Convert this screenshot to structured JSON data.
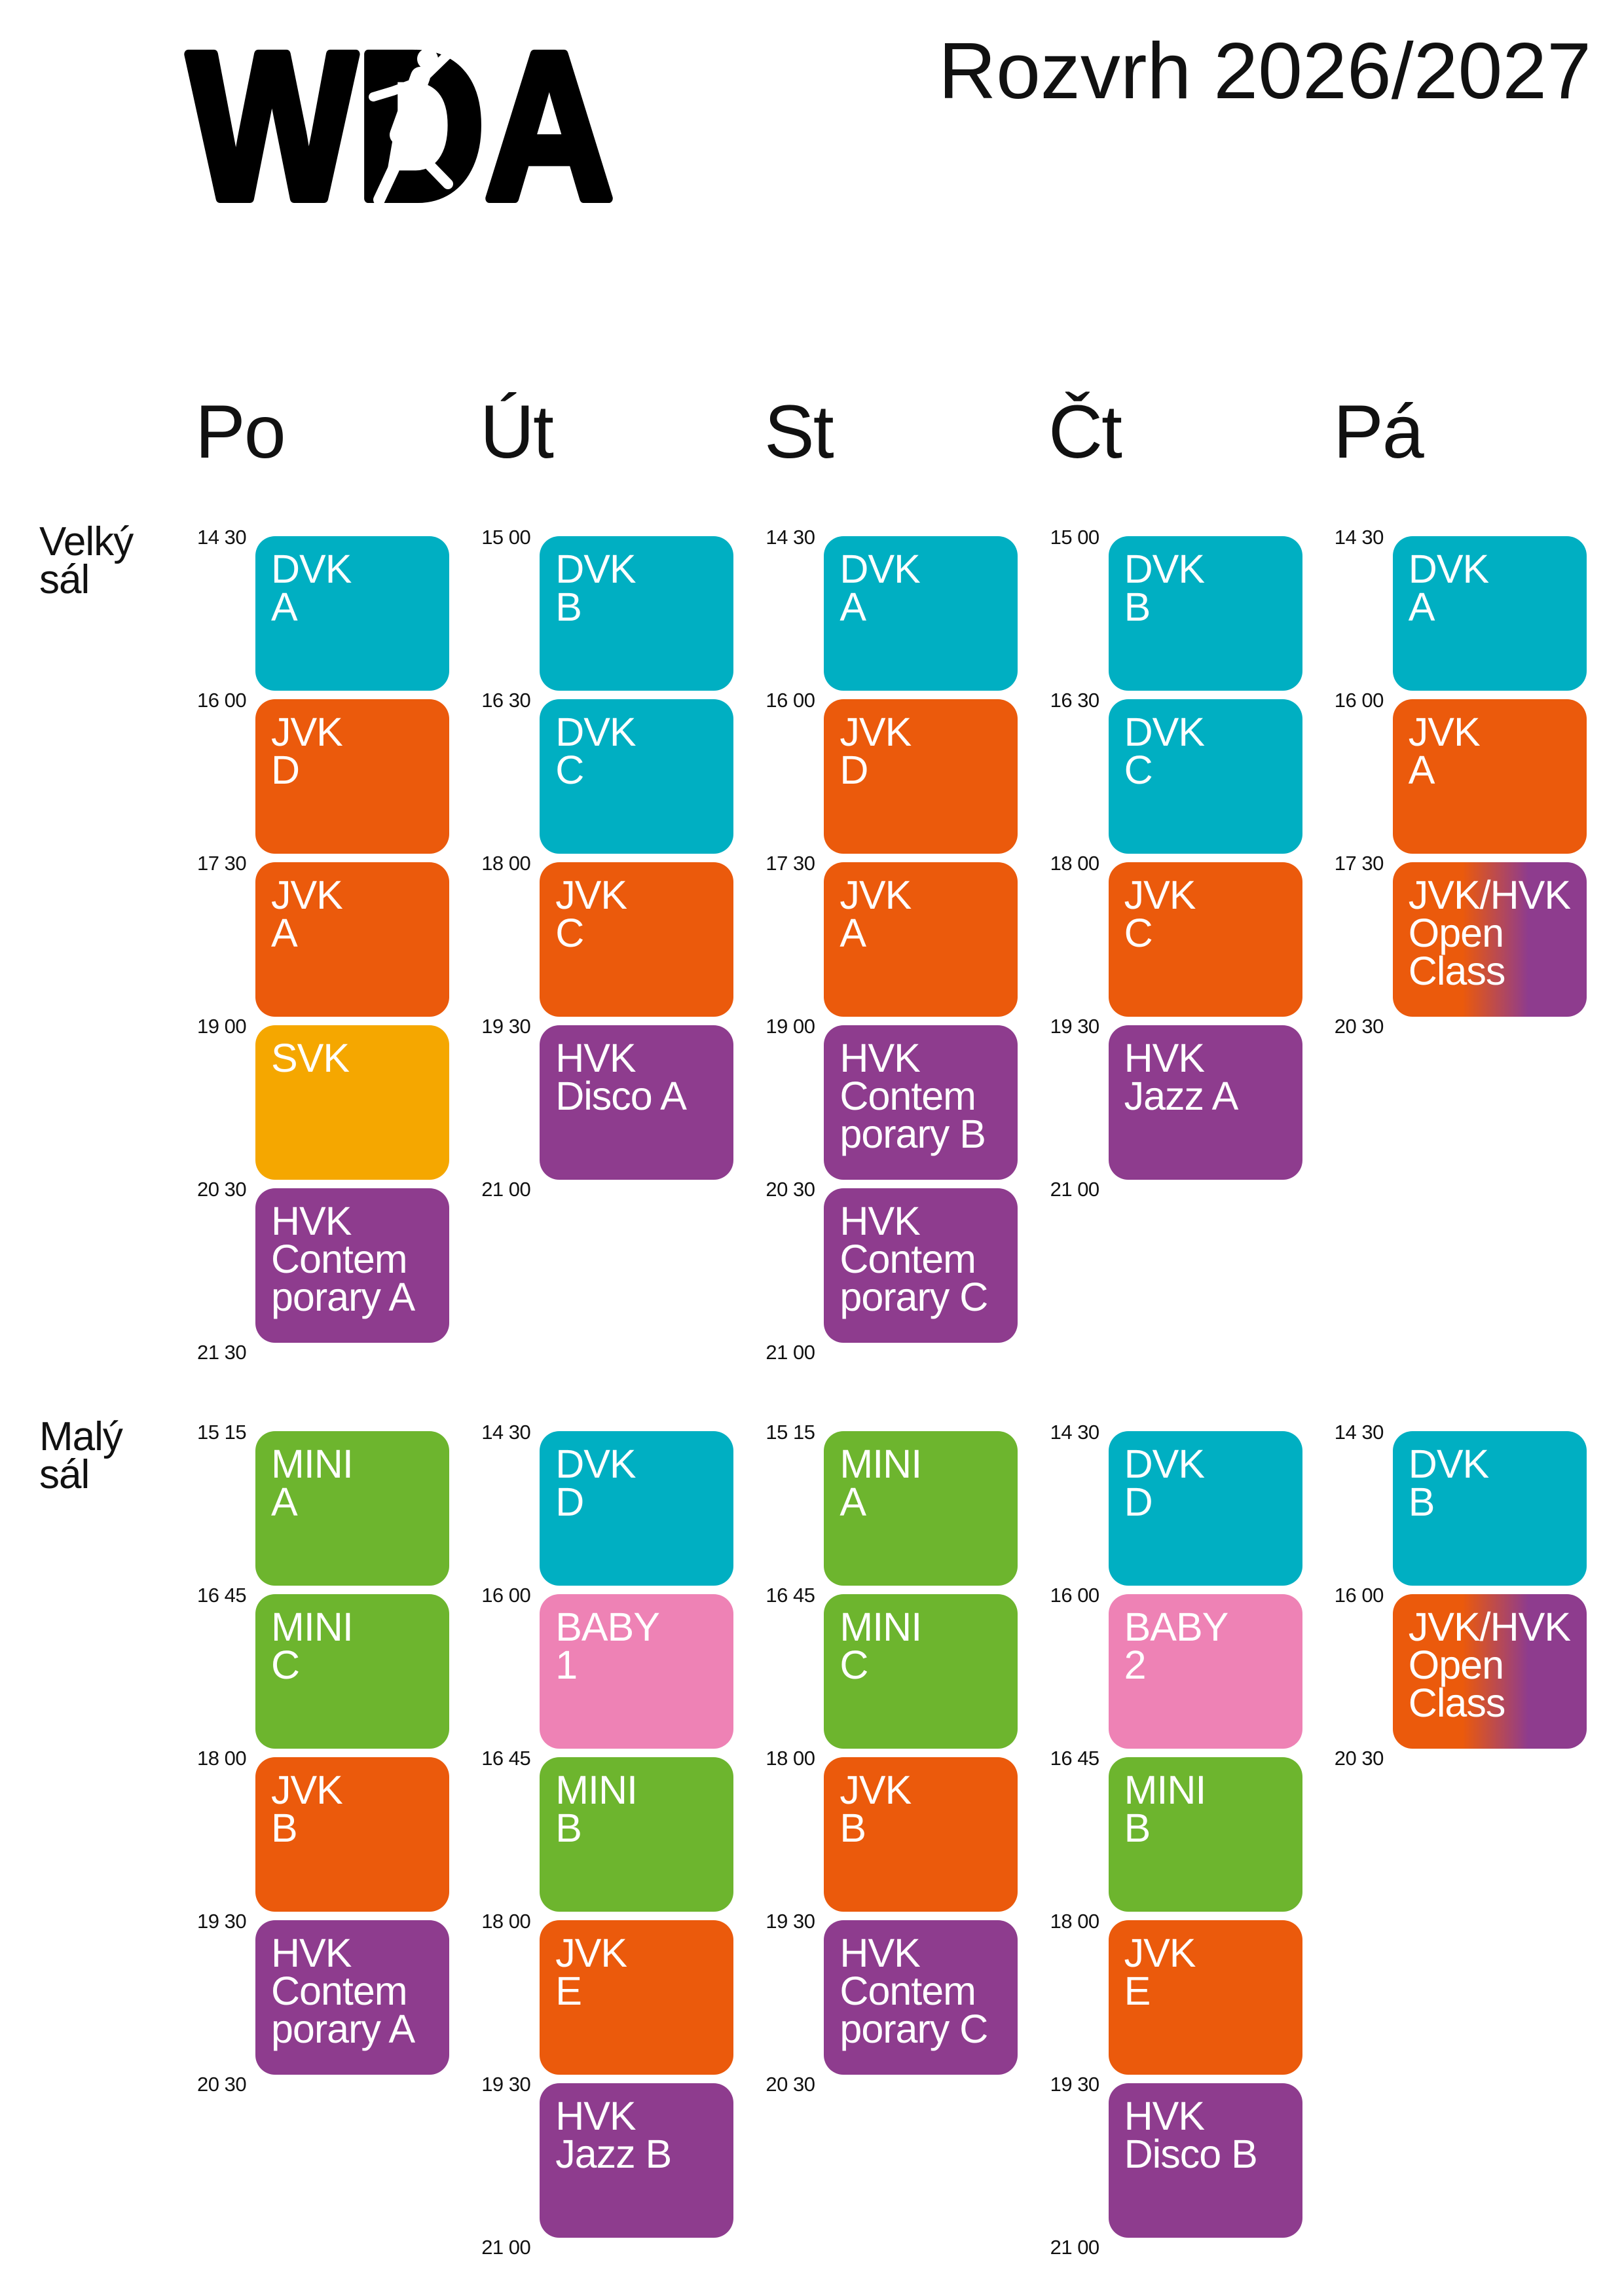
{
  "logo": {
    "text": "WDA"
  },
  "title": "Rozvrh 2026/2027",
  "days": [
    "Po",
    "Út",
    "St",
    "Čt",
    "Pá"
  ],
  "colors": {
    "teal": "#00AFC2",
    "orange": "#EB5A0C",
    "yellow": "#F5A700",
    "purple": "#8E3C8E",
    "green": "#6DB52E",
    "pink": "#EE82B5",
    "open": [
      "#EB5A0C",
      "#8E3C8E"
    ]
  },
  "halls": [
    {
      "label_lines": [
        "Velký",
        "sál"
      ],
      "columns": [
        {
          "times": [
            "14 30",
            "16 00",
            "17 30",
            "19 00",
            "20 30",
            "21 30"
          ],
          "blocks": [
            {
              "lines": [
                "DVK",
                "A"
              ],
              "color": "teal"
            },
            {
              "lines": [
                "JVK",
                "D"
              ],
              "color": "orange"
            },
            {
              "lines": [
                "JVK",
                "A"
              ],
              "color": "orange"
            },
            {
              "lines": [
                "SVK"
              ],
              "color": "yellow"
            },
            {
              "lines": [
                "HVK",
                "Contem",
                "porary A"
              ],
              "color": "purple"
            }
          ]
        },
        {
          "times": [
            "15 00",
            "16 30",
            "18 00",
            "19 30",
            "21 00"
          ],
          "blocks": [
            {
              "lines": [
                "DVK",
                "B"
              ],
              "color": "teal"
            },
            {
              "lines": [
                "DVK",
                "C"
              ],
              "color": "teal"
            },
            {
              "lines": [
                "JVK",
                "C"
              ],
              "color": "orange"
            },
            {
              "lines": [
                "HVK",
                "Disco A"
              ],
              "color": "purple"
            }
          ]
        },
        {
          "times": [
            "14 30",
            "16 00",
            "17 30",
            "19 00",
            "20 30",
            "21 00"
          ],
          "blocks": [
            {
              "lines": [
                "DVK",
                "A"
              ],
              "color": "teal"
            },
            {
              "lines": [
                "JVK",
                "D"
              ],
              "color": "orange"
            },
            {
              "lines": [
                "JVK",
                "A"
              ],
              "color": "orange"
            },
            {
              "lines": [
                "HVK",
                "Contem",
                "porary B"
              ],
              "color": "purple"
            },
            {
              "lines": [
                "HVK",
                "Contem",
                "porary C"
              ],
              "color": "purple"
            }
          ]
        },
        {
          "times": [
            "15 00",
            "16 30",
            "18 00",
            "19 30",
            "21 00"
          ],
          "blocks": [
            {
              "lines": [
                "DVK",
                "B"
              ],
              "color": "teal"
            },
            {
              "lines": [
                "DVK",
                "C"
              ],
              "color": "teal"
            },
            {
              "lines": [
                "JVK",
                "C"
              ],
              "color": "orange"
            },
            {
              "lines": [
                "HVK",
                "Jazz A"
              ],
              "color": "purple"
            }
          ]
        },
        {
          "times": [
            "14 30",
            "16 00",
            "17 30",
            "20 30"
          ],
          "blocks": [
            {
              "lines": [
                "DVK",
                "A"
              ],
              "color": "teal"
            },
            {
              "lines": [
                "JVK",
                "A"
              ],
              "color": "orange"
            },
            {
              "lines": [
                "JVK/HVK",
                "Open",
                "Class"
              ],
              "color": "open"
            }
          ]
        }
      ]
    },
    {
      "label_lines": [
        "Malý",
        "sál"
      ],
      "columns": [
        {
          "times": [
            "15 15",
            "16 45",
            "18 00",
            "19 30",
            "20 30"
          ],
          "blocks": [
            {
              "lines": [
                "MINI",
                "A"
              ],
              "color": "green"
            },
            {
              "lines": [
                "MINI",
                "C"
              ],
              "color": "green"
            },
            {
              "lines": [
                "JVK",
                "B"
              ],
              "color": "orange"
            },
            {
              "lines": [
                "HVK",
                "Contem",
                "porary A"
              ],
              "color": "purple"
            }
          ]
        },
        {
          "times": [
            "14 30",
            "16 00",
            "16 45",
            "18 00",
            "19 30",
            "21 00"
          ],
          "blocks": [
            {
              "lines": [
                "DVK",
                "D"
              ],
              "color": "teal"
            },
            {
              "lines": [
                "BABY",
                "1"
              ],
              "color": "pink"
            },
            {
              "lines": [
                "MINI",
                "B"
              ],
              "color": "green"
            },
            {
              "lines": [
                "JVK",
                "E"
              ],
              "color": "orange"
            },
            {
              "lines": [
                "HVK",
                "Jazz B"
              ],
              "color": "purple"
            }
          ]
        },
        {
          "times": [
            "15 15",
            "16 45",
            "18 00",
            "19 30",
            "20 30"
          ],
          "blocks": [
            {
              "lines": [
                "MINI",
                "A"
              ],
              "color": "green"
            },
            {
              "lines": [
                "MINI",
                "C"
              ],
              "color": "green"
            },
            {
              "lines": [
                "JVK",
                "B"
              ],
              "color": "orange"
            },
            {
              "lines": [
                "HVK",
                "Contem",
                "porary C"
              ],
              "color": "purple"
            }
          ]
        },
        {
          "times": [
            "14 30",
            "16 00",
            "16 45",
            "18 00",
            "19 30",
            "21 00"
          ],
          "blocks": [
            {
              "lines": [
                "DVK",
                "D"
              ],
              "color": "teal"
            },
            {
              "lines": [
                "BABY",
                "2"
              ],
              "color": "pink"
            },
            {
              "lines": [
                "MINI",
                "B"
              ],
              "color": "green"
            },
            {
              "lines": [
                "JVK",
                "E"
              ],
              "color": "orange"
            },
            {
              "lines": [
                "HVK",
                "Disco B"
              ],
              "color": "purple"
            }
          ]
        },
        {
          "times": [
            "14 30",
            "16 00",
            "20 30"
          ],
          "blocks": [
            {
              "lines": [
                "DVK",
                "B"
              ],
              "color": "teal"
            },
            {
              "lines": [
                "JVK/HVK",
                "Open",
                "Class"
              ],
              "color": "open"
            }
          ]
        }
      ]
    }
  ]
}
